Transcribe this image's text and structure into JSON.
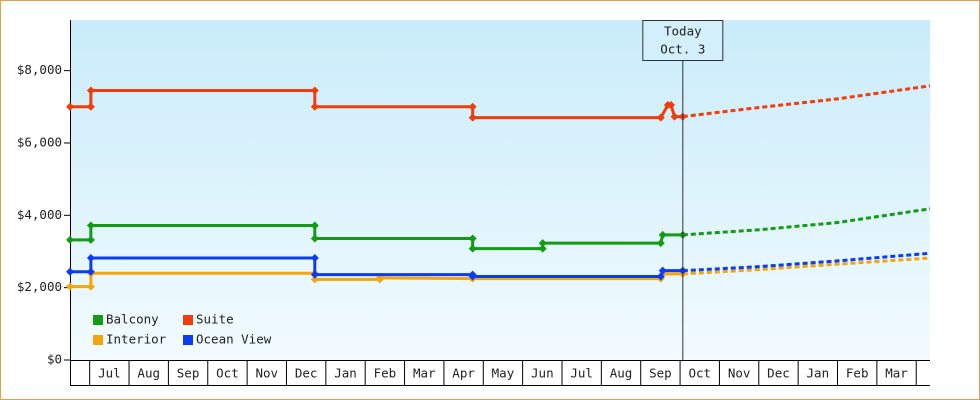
{
  "chart_data": {
    "type": "line",
    "xlim": [
      -0.5,
      21.35
    ],
    "ylim": [
      0,
      9400
    ],
    "xticks": [
      {
        "value": 0.5,
        "label": "Jul"
      },
      {
        "value": 1.5,
        "label": "Aug"
      },
      {
        "value": 2.5,
        "label": "Sep"
      },
      {
        "value": 3.5,
        "label": "Oct"
      },
      {
        "value": 4.5,
        "label": "Nov"
      },
      {
        "value": 5.5,
        "label": "Dec"
      },
      {
        "value": 6.5,
        "label": "Jan"
      },
      {
        "value": 7.5,
        "label": "Feb"
      },
      {
        "value": 8.5,
        "label": "Mar"
      },
      {
        "value": 9.5,
        "label": "Apr"
      },
      {
        "value": 10.5,
        "label": "May"
      },
      {
        "value": 11.5,
        "label": "Jun"
      },
      {
        "value": 12.5,
        "label": "Jul"
      },
      {
        "value": 13.5,
        "label": "Aug"
      },
      {
        "value": 14.5,
        "label": "Sep"
      },
      {
        "value": 15.5,
        "label": "Oct"
      },
      {
        "value": 16.5,
        "label": "Nov"
      },
      {
        "value": 17.5,
        "label": "Dec"
      },
      {
        "value": 18.5,
        "label": "Jan"
      },
      {
        "value": 19.5,
        "label": "Feb"
      },
      {
        "value": 20.5,
        "label": "Mar"
      }
    ],
    "yticks": [
      {
        "value": 0,
        "label": "$0"
      },
      {
        "value": 2000,
        "label": "$2,000"
      },
      {
        "value": 4000,
        "label": "$4,000"
      },
      {
        "value": 6000,
        "label": "$6,000"
      },
      {
        "value": 8000,
        "label": "$8,000"
      }
    ],
    "annotation": {
      "label": "Today",
      "sublabel": "Oct. 3",
      "x": 15.07
    },
    "series": [
      {
        "name": "Balcony",
        "color": "#139b13",
        "x": [
          -0.5,
          0.03,
          0.03,
          5.72,
          5.72,
          9.73,
          9.73,
          11.51,
          11.51,
          14.51,
          14.56,
          15.07
        ],
        "values": [
          3320,
          3320,
          3720,
          3720,
          3360,
          3360,
          3080,
          3080,
          3230,
          3230,
          3460,
          3460
        ],
        "forecast_x": [
          15.07,
          17,
          19,
          21.35
        ],
        "forecast_values": [
          3460,
          3600,
          3800,
          4180
        ]
      },
      {
        "name": "Suite",
        "color": "#f23c0c",
        "x": [
          -0.5,
          0.03,
          0.03,
          5.72,
          5.72,
          9.73,
          9.73,
          14.51,
          14.69,
          14.77,
          14.86,
          15.07
        ],
        "values": [
          7000,
          7000,
          7450,
          7450,
          7000,
          7000,
          6700,
          6700,
          7050,
          7050,
          6730,
          6730
        ],
        "forecast_x": [
          15.07,
          17,
          19,
          21.35
        ],
        "forecast_values": [
          6730,
          6980,
          7220,
          7580
        ]
      },
      {
        "name": "Interior",
        "color": "#f5a50c",
        "x": [
          -0.5,
          0.03,
          0.03,
          5.72,
          5.72,
          7.37,
          7.37,
          9.73,
          14.51,
          14.56,
          15.07
        ],
        "values": [
          2030,
          2030,
          2400,
          2400,
          2230,
          2230,
          2270,
          2250,
          2250,
          2380,
          2380
        ],
        "forecast_x": [
          15.07,
          17,
          19,
          21.35
        ],
        "forecast_values": [
          2380,
          2500,
          2650,
          2820
        ]
      },
      {
        "name": "Ocean View",
        "color": "#0c3cf2",
        "x": [
          -0.5,
          0.03,
          0.03,
          5.72,
          5.72,
          9.73,
          9.73,
          14.51,
          14.56,
          15.07
        ],
        "values": [
          2440,
          2440,
          2820,
          2820,
          2360,
          2360,
          2310,
          2310,
          2470,
          2470
        ],
        "forecast_x": [
          15.07,
          17,
          19,
          21.35
        ],
        "forecast_values": [
          2470,
          2580,
          2740,
          2950
        ]
      }
    ]
  }
}
